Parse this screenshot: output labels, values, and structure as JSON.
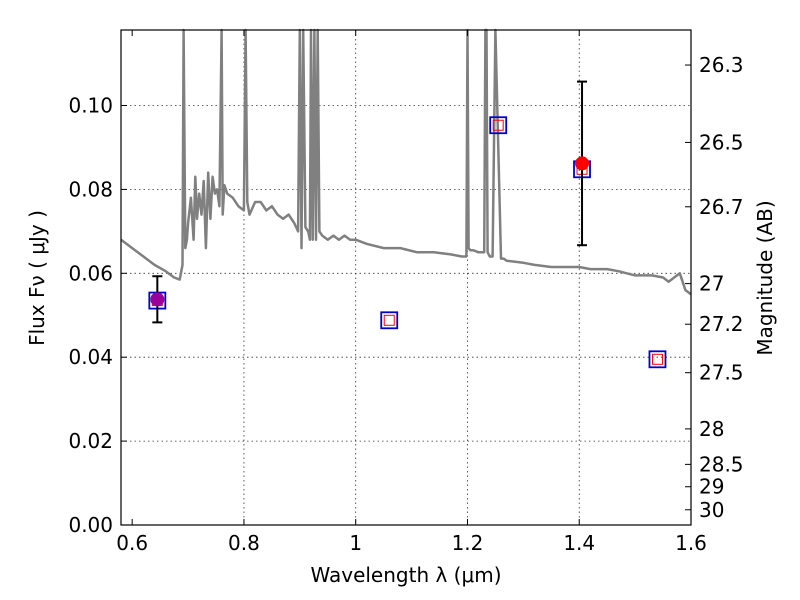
{
  "chart_data": {
    "type": "scatter",
    "xlabel": "Wavelength  λ (μm)",
    "ylabel": "Flux  Fν  ( μJy )",
    "y2label": "Magnitude (AB)",
    "xlim": [
      0.58,
      1.6
    ],
    "ylim": [
      0.0,
      0.118
    ],
    "x_ticks": [
      0.6,
      0.8,
      1.0,
      1.2,
      1.4,
      1.6
    ],
    "x_tick_labels": [
      "0.6",
      "0.8",
      "1",
      "1.2",
      "1.4",
      "1.6"
    ],
    "y_ticks": [
      0.0,
      0.02,
      0.04,
      0.06,
      0.08,
      0.1
    ],
    "y_tick_labels": [
      "0.00",
      "0.02",
      "0.04",
      "0.06",
      "0.08",
      "0.10"
    ],
    "mag_ticks": [
      "26.3",
      "26.5",
      "26.7",
      "27",
      "27.2",
      "27.5",
      "28",
      "28.5",
      "29",
      "30"
    ],
    "grid": true,
    "colors": {
      "model": "#808080",
      "box": "#0000cc",
      "box_inner": "#ff0000",
      "observed": "#ff0000",
      "observed_faint": "#990099",
      "errorbar": "#000000"
    },
    "series": [
      {
        "kind": "model-spectrum",
        "x": [
          0.58,
          0.6,
          0.62,
          0.64,
          0.66,
          0.675,
          0.685,
          0.69,
          0.692,
          0.695,
          0.698,
          0.7,
          0.705,
          0.71,
          0.713,
          0.716,
          0.72,
          0.724,
          0.728,
          0.732,
          0.736,
          0.74,
          0.744,
          0.748,
          0.752,
          0.756,
          0.76,
          0.762,
          0.765,
          0.77,
          0.78,
          0.79,
          0.8,
          0.803,
          0.806,
          0.81,
          0.82,
          0.83,
          0.84,
          0.85,
          0.86,
          0.87,
          0.88,
          0.89,
          0.897,
          0.9,
          0.903,
          0.906,
          0.91,
          0.915,
          0.918,
          0.92,
          0.923,
          0.926,
          0.929,
          0.932,
          0.935,
          0.94,
          0.95,
          0.96,
          0.97,
          0.98,
          0.99,
          1.0,
          1.02,
          1.05,
          1.08,
          1.11,
          1.14,
          1.17,
          1.19,
          1.198,
          1.2,
          1.202,
          1.205,
          1.21,
          1.22,
          1.23,
          1.232,
          1.234,
          1.236,
          1.24,
          1.245,
          1.25,
          1.26,
          1.265,
          1.27,
          1.3,
          1.32,
          1.35,
          1.38,
          1.4,
          1.42,
          1.45,
          1.47,
          1.5,
          1.53,
          1.55,
          1.56,
          1.57,
          1.575,
          1.58,
          1.585,
          1.59,
          1.6
        ],
        "y": [
          0.068,
          0.066,
          0.064,
          0.062,
          0.0605,
          0.059,
          0.0585,
          0.062,
          0.118,
          0.066,
          0.068,
          0.072,
          0.078,
          0.068,
          0.083,
          0.073,
          0.079,
          0.074,
          0.082,
          0.066,
          0.084,
          0.073,
          0.083,
          0.079,
          0.08,
          0.076,
          0.118,
          0.074,
          0.081,
          0.079,
          0.078,
          0.076,
          0.075,
          0.118,
          0.077,
          0.074,
          0.077,
          0.077,
          0.075,
          0.076,
          0.074,
          0.073,
          0.074,
          0.072,
          0.07,
          0.118,
          0.066,
          0.118,
          0.071,
          0.07,
          0.068,
          0.118,
          0.068,
          0.118,
          0.068,
          0.118,
          0.07,
          0.069,
          0.068,
          0.069,
          0.068,
          0.069,
          0.068,
          0.068,
          0.067,
          0.066,
          0.066,
          0.065,
          0.065,
          0.0645,
          0.064,
          0.064,
          0.118,
          0.066,
          0.0655,
          0.0655,
          0.065,
          0.065,
          0.118,
          0.118,
          0.065,
          0.064,
          0.064,
          0.118,
          0.0635,
          0.0635,
          0.063,
          0.0625,
          0.062,
          0.0615,
          0.0615,
          0.0615,
          0.061,
          0.061,
          0.0605,
          0.0595,
          0.0595,
          0.059,
          0.058,
          0.059,
          0.0595,
          0.06,
          0.058,
          0.056,
          0.055
        ]
      },
      {
        "kind": "model-photometry",
        "x": [
          0.645,
          1.06,
          1.255,
          1.405,
          1.54
        ],
        "y": [
          0.0535,
          0.0488,
          0.0953,
          0.0848,
          0.0395
        ]
      },
      {
        "kind": "observed",
        "x": [
          0.645,
          1.405
        ],
        "y": [
          0.0538,
          0.0862
        ],
        "err": [
          0.0055,
          0.0195
        ]
      }
    ]
  }
}
